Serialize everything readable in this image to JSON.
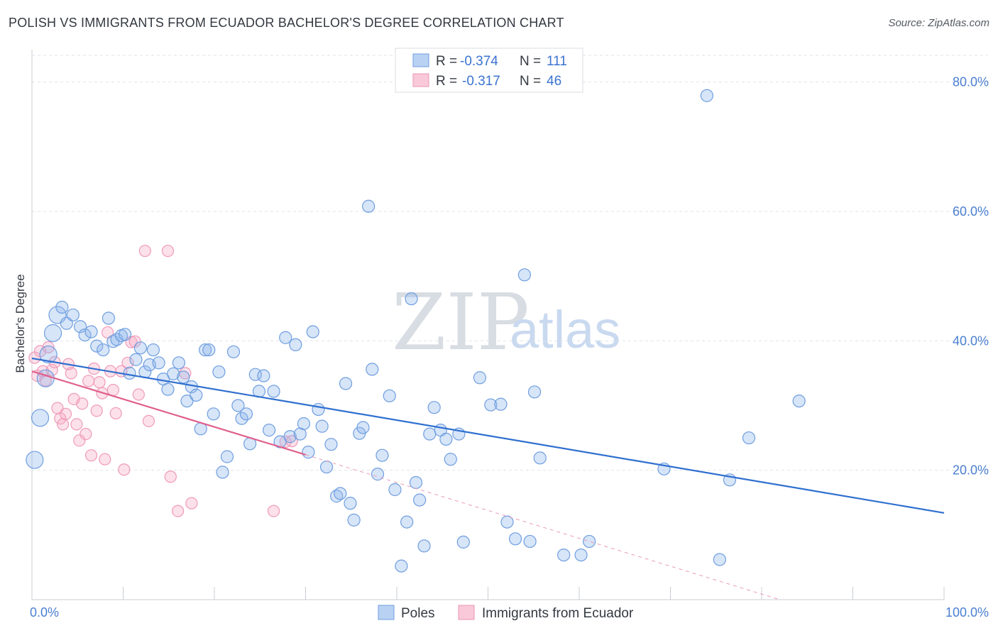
{
  "title": "POLISH VS IMMIGRANTS FROM ECUADOR BACHELOR'S DEGREE CORRELATION CHART",
  "source": "Source: ZipAtlas.com",
  "watermark": {
    "zip": "ZIP",
    "atlas": "atlas"
  },
  "legend": {
    "series1": {
      "r_label": "R =",
      "r_value": "-0.374",
      "n_label": "N =",
      "n_value": "111"
    },
    "series2": {
      "r_label": "R =",
      "r_value": "-0.317",
      "n_label": "N =",
      "n_value": "46"
    }
  },
  "colors": {
    "poles": "#5b93e0",
    "poles_line": "#2f6fcf",
    "ecuador": "#f08cb0",
    "ecuador_line": "#e0608c",
    "grid": "#dfe3e8"
  },
  "chart_data": {
    "type": "scatter",
    "title": "POLISH VS IMMIGRANTS FROM ECUADOR BACHELOR'S DEGREE CORRELATION CHART",
    "xlabel": "",
    "ylabel": "Bachelor's Degree",
    "xlim": [
      0,
      100
    ],
    "ylim": [
      0,
      85
    ],
    "x_tick_labels": [
      "0.0%",
      "100.0%"
    ],
    "y_ticks": [
      20,
      40,
      60,
      80
    ],
    "y_tick_labels": [
      "20.0%",
      "40.0%",
      "60.0%",
      "80.0%"
    ],
    "grid": true,
    "legend_position": "top-center",
    "bottom_legend": [
      "Poles",
      "Immigrants from Ecuador"
    ],
    "series": [
      {
        "name": "Poles",
        "r": -0.374,
        "n": 111,
        "trend": {
          "x": [
            0,
            100
          ],
          "y": [
            37.3,
            13.4
          ]
        },
        "points": [
          [
            0.3,
            21.6
          ],
          [
            0.9,
            28.1
          ],
          [
            1.5,
            34.2
          ],
          [
            1.8,
            37.9
          ],
          [
            2.3,
            41.2
          ],
          [
            2.8,
            44.0
          ],
          [
            3.3,
            45.2
          ],
          [
            3.8,
            42.7
          ],
          [
            4.5,
            44.0
          ],
          [
            5.3,
            42.2
          ],
          [
            5.8,
            40.9
          ],
          [
            6.5,
            41.4
          ],
          [
            7.1,
            39.2
          ],
          [
            7.8,
            38.6
          ],
          [
            8.4,
            43.5
          ],
          [
            8.9,
            39.9
          ],
          [
            9.3,
            40.2
          ],
          [
            9.8,
            40.8
          ],
          [
            10.2,
            41.0
          ],
          [
            10.7,
            35.0
          ],
          [
            11.4,
            37.1
          ],
          [
            11.9,
            38.9
          ],
          [
            12.4,
            35.2
          ],
          [
            12.9,
            36.3
          ],
          [
            13.3,
            38.6
          ],
          [
            13.9,
            36.6
          ],
          [
            14.4,
            34.1
          ],
          [
            14.9,
            32.5
          ],
          [
            15.5,
            34.9
          ],
          [
            16.1,
            36.6
          ],
          [
            16.6,
            34.4
          ],
          [
            17.0,
            30.7
          ],
          [
            17.5,
            32.9
          ],
          [
            18.0,
            31.6
          ],
          [
            18.5,
            26.4
          ],
          [
            19.0,
            38.6
          ],
          [
            19.4,
            38.6
          ],
          [
            19.9,
            28.7
          ],
          [
            20.5,
            35.2
          ],
          [
            20.9,
            19.7
          ],
          [
            21.4,
            22.1
          ],
          [
            22.1,
            38.3
          ],
          [
            22.6,
            30.0
          ],
          [
            23.0,
            28.0
          ],
          [
            23.5,
            28.7
          ],
          [
            23.9,
            24.1
          ],
          [
            24.5,
            34.8
          ],
          [
            24.9,
            32.2
          ],
          [
            25.4,
            34.6
          ],
          [
            26.0,
            26.2
          ],
          [
            26.5,
            32.2
          ],
          [
            27.2,
            24.4
          ],
          [
            27.8,
            40.5
          ],
          [
            28.3,
            25.2
          ],
          [
            28.9,
            39.4
          ],
          [
            29.4,
            25.6
          ],
          [
            29.8,
            27.2
          ],
          [
            30.3,
            22.8
          ],
          [
            30.8,
            41.4
          ],
          [
            31.4,
            29.4
          ],
          [
            31.8,
            26.8
          ],
          [
            32.3,
            20.5
          ],
          [
            32.8,
            24.0
          ],
          [
            33.4,
            16.0
          ],
          [
            33.8,
            16.4
          ],
          [
            34.4,
            33.4
          ],
          [
            34.9,
            14.9
          ],
          [
            35.3,
            12.3
          ],
          [
            35.9,
            25.7
          ],
          [
            36.3,
            26.6
          ],
          [
            36.9,
            60.8
          ],
          [
            37.3,
            35.6
          ],
          [
            37.9,
            19.4
          ],
          [
            38.4,
            22.3
          ],
          [
            39.2,
            31.5
          ],
          [
            39.8,
            17.0
          ],
          [
            40.5,
            5.2
          ],
          [
            41.1,
            12.0
          ],
          [
            41.6,
            46.5
          ],
          [
            42.1,
            18.1
          ],
          [
            42.5,
            15.4
          ],
          [
            43.0,
            8.3
          ],
          [
            43.6,
            25.6
          ],
          [
            44.1,
            29.7
          ],
          [
            44.8,
            26.2
          ],
          [
            45.4,
            24.8
          ],
          [
            45.9,
            21.7
          ],
          [
            46.8,
            25.6
          ],
          [
            47.3,
            8.9
          ],
          [
            49.1,
            34.3
          ],
          [
            50.3,
            30.1
          ],
          [
            51.4,
            30.2
          ],
          [
            52.1,
            12.0
          ],
          [
            53.0,
            9.4
          ],
          [
            54.0,
            50.2
          ],
          [
            54.6,
            9.0
          ],
          [
            55.1,
            32.1
          ],
          [
            55.7,
            21.9
          ],
          [
            58.3,
            6.9
          ],
          [
            60.2,
            6.9
          ],
          [
            61.1,
            9.0
          ],
          [
            69.3,
            20.2
          ],
          [
            74.0,
            77.9
          ],
          [
            75.4,
            6.2
          ],
          [
            76.5,
            18.5
          ],
          [
            78.6,
            25.0
          ],
          [
            84.1,
            30.7
          ]
        ]
      },
      {
        "name": "Immigrants from Ecuador",
        "r": -0.317,
        "n": 46,
        "trend": {
          "x": [
            0,
            30
          ],
          "y": [
            35.3,
            22.4
          ]
        },
        "trend_extension": {
          "x": [
            30,
            82
          ],
          "y": [
            22.4,
            0.0
          ]
        },
        "points": [
          [
            0.3,
            37.4
          ],
          [
            0.6,
            34.6
          ],
          [
            0.9,
            38.4
          ],
          [
            1.2,
            35.3
          ],
          [
            1.5,
            33.9
          ],
          [
            1.8,
            39.0
          ],
          [
            2.2,
            35.5
          ],
          [
            2.5,
            36.7
          ],
          [
            2.8,
            29.6
          ],
          [
            3.1,
            28.0
          ],
          [
            3.4,
            27.1
          ],
          [
            3.7,
            28.7
          ],
          [
            4.0,
            36.4
          ],
          [
            4.3,
            35.0
          ],
          [
            4.6,
            31.0
          ],
          [
            4.9,
            27.1
          ],
          [
            5.2,
            24.6
          ],
          [
            5.5,
            30.3
          ],
          [
            5.9,
            25.6
          ],
          [
            6.2,
            33.8
          ],
          [
            6.5,
            22.3
          ],
          [
            6.8,
            35.7
          ],
          [
            7.1,
            29.2
          ],
          [
            7.4,
            33.6
          ],
          [
            7.7,
            31.9
          ],
          [
            8.0,
            21.7
          ],
          [
            8.3,
            41.3
          ],
          [
            8.6,
            35.3
          ],
          [
            8.9,
            32.4
          ],
          [
            9.2,
            28.8
          ],
          [
            9.8,
            35.3
          ],
          [
            10.1,
            20.1
          ],
          [
            10.5,
            36.6
          ],
          [
            10.9,
            39.8
          ],
          [
            11.3,
            39.9
          ],
          [
            11.7,
            31.7
          ],
          [
            12.4,
            53.9
          ],
          [
            12.8,
            27.6
          ],
          [
            14.9,
            53.9
          ],
          [
            15.2,
            19.0
          ],
          [
            16.0,
            13.7
          ],
          [
            16.8,
            35.0
          ],
          [
            17.5,
            14.9
          ],
          [
            26.5,
            13.7
          ],
          [
            27.8,
            24.4
          ],
          [
            28.5,
            24.5
          ]
        ]
      }
    ]
  }
}
